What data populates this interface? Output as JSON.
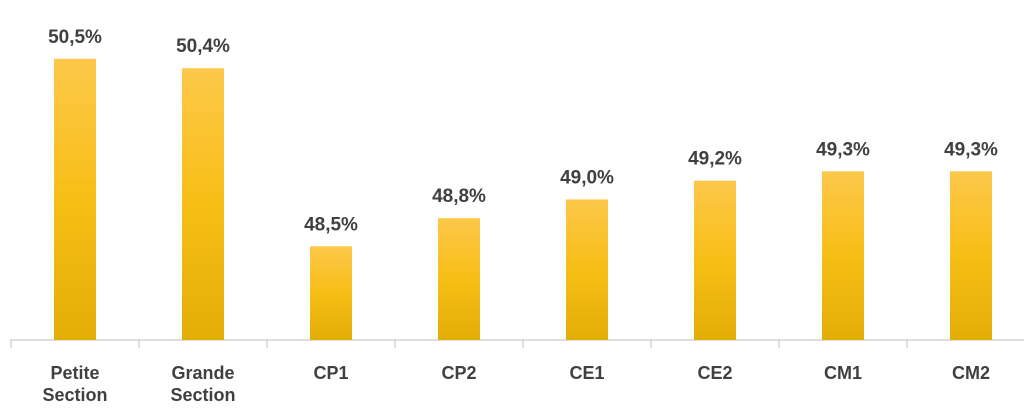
{
  "chart_data": {
    "type": "bar",
    "categories": [
      "Petite Section",
      "Grande Section",
      "CP1",
      "CP2",
      "CE1",
      "CE2",
      "CM1",
      "CM2"
    ],
    "values": [
      50.5,
      50.4,
      48.5,
      48.8,
      49.0,
      49.2,
      49.3,
      49.3
    ],
    "value_labels": [
      "50,5%",
      "50,4%",
      "48,5%",
      "48,8%",
      "49,0%",
      "49,2%",
      "49,3%",
      "49,3%"
    ],
    "color": "#f8be16",
    "ylim": [
      47.5,
      51
    ]
  }
}
